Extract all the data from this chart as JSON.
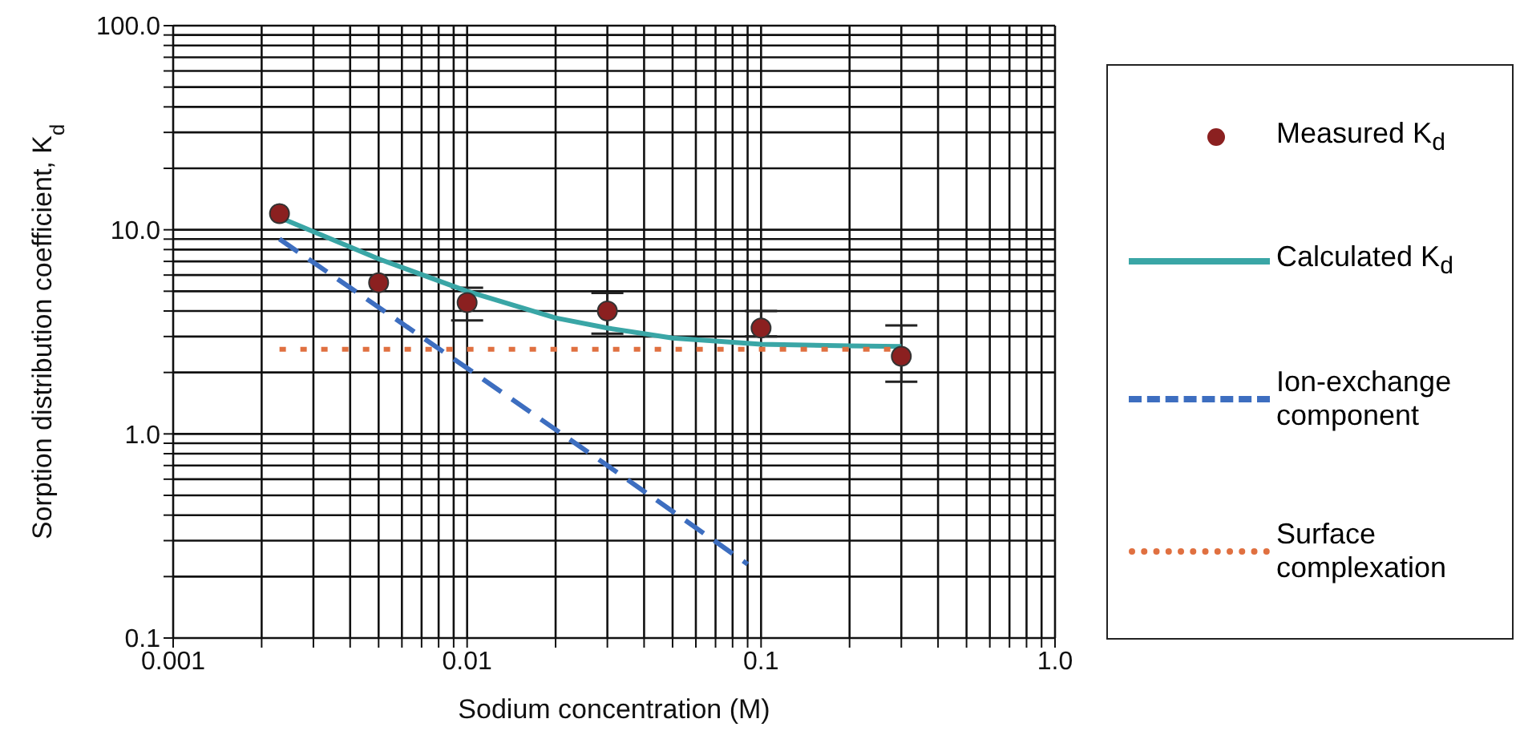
{
  "chart_data": {
    "type": "scatter",
    "xlabel": "Sodium concentration (M)",
    "ylabel": "Sorption distribution coefficient, K$_{d}$",
    "log": "xy",
    "grid": true,
    "legend": "right",
    "xlim": [
      0.001,
      1.0
    ],
    "ylim": [
      0.1,
      100.0
    ],
    "xticks": [
      {
        "value": 0.001,
        "label": "0.001"
      },
      {
        "value": 0.002,
        "label": null
      },
      {
        "value": 0.003,
        "label": null
      },
      {
        "value": 0.004,
        "label": null
      },
      {
        "value": 0.005,
        "label": null
      },
      {
        "value": 0.006,
        "label": null
      },
      {
        "value": 0.007,
        "label": null
      },
      {
        "value": 0.008,
        "label": null
      },
      {
        "value": 0.009,
        "label": null
      },
      {
        "value": 0.01,
        "label": "0.01"
      },
      {
        "value": 0.02,
        "label": null
      },
      {
        "value": 0.03,
        "label": null
      },
      {
        "value": 0.04,
        "label": null
      },
      {
        "value": 0.05,
        "label": null
      },
      {
        "value": 0.06,
        "label": null
      },
      {
        "value": 0.07,
        "label": null
      },
      {
        "value": 0.08,
        "label": null
      },
      {
        "value": 0.09,
        "label": null
      },
      {
        "value": 0.1,
        "label": "0.1"
      },
      {
        "value": 0.2,
        "label": null
      },
      {
        "value": 0.3,
        "label": null
      },
      {
        "value": 0.4,
        "label": null
      },
      {
        "value": 0.5,
        "label": null
      },
      {
        "value": 0.6,
        "label": null
      },
      {
        "value": 0.7,
        "label": null
      },
      {
        "value": 0.8,
        "label": null
      },
      {
        "value": 0.9,
        "label": null
      },
      {
        "value": 1.0,
        "label": "1.0"
      }
    ],
    "yticks": [
      {
        "value": 0.1,
        "label": "0.1"
      },
      {
        "value": 0.2,
        "label": null
      },
      {
        "value": 0.3,
        "label": null
      },
      {
        "value": 0.4,
        "label": null
      },
      {
        "value": 0.5,
        "label": null
      },
      {
        "value": 0.6,
        "label": null
      },
      {
        "value": 0.7,
        "label": null
      },
      {
        "value": 0.8,
        "label": null
      },
      {
        "value": 0.9,
        "label": null
      },
      {
        "value": 1.0,
        "label": "1.0"
      },
      {
        "value": 2,
        "label": null
      },
      {
        "value": 3,
        "label": null
      },
      {
        "value": 4,
        "label": null
      },
      {
        "value": 5,
        "label": null
      },
      {
        "value": 6,
        "label": null
      },
      {
        "value": 7,
        "label": null
      },
      {
        "value": 8,
        "label": null
      },
      {
        "value": 9,
        "label": null
      },
      {
        "value": 10.0,
        "label": "10.0"
      },
      {
        "value": 20,
        "label": null
      },
      {
        "value": 30,
        "label": null
      },
      {
        "value": 40,
        "label": null
      },
      {
        "value": 50,
        "label": null
      },
      {
        "value": 60,
        "label": null
      },
      {
        "value": 70,
        "label": null
      },
      {
        "value": 80,
        "label": null
      },
      {
        "value": 90,
        "label": null
      },
      {
        "value": 100.0,
        "label": "100.0"
      }
    ],
    "series": [
      {
        "name": "Measured K$_{d}$",
        "marker": "circle",
        "color": "#8b2020",
        "x": [
          0.0023,
          0.005,
          0.01,
          0.03,
          0.1,
          0.3
        ],
        "values": [
          12,
          5.5,
          4.4,
          4.0,
          3.3,
          2.4
        ],
        "errors": [
          null,
          null,
          [
            3.6,
            5.2
          ],
          [
            3.1,
            4.9
          ],
          [
            3.0,
            4.0
          ],
          [
            1.8,
            3.4
          ]
        ]
      },
      {
        "name": "Calculated K$_{d}$",
        "type": "line",
        "line_style": "solid",
        "marker": "none",
        "color": "#3aa6a6",
        "x": [
          0.0023,
          0.003,
          0.005,
          0.01,
          0.02,
          0.03,
          0.05,
          0.1,
          0.2,
          0.3
        ],
        "values": [
          11.5,
          9.8,
          7.2,
          5.0,
          3.7,
          3.3,
          2.95,
          2.75,
          2.7,
          2.68
        ]
      },
      {
        "name": "Ion-exchange component",
        "type": "line",
        "line_style": "dashed",
        "marker": "none",
        "color": "#3d6ec0",
        "x": [
          0.0023,
          0.01,
          0.03,
          0.09
        ],
        "values": [
          9,
          2.1,
          0.7,
          0.23
        ]
      },
      {
        "name": "Surface complexation",
        "type": "line",
        "line_style": "dotted",
        "marker": "none",
        "color": "#e07040",
        "x": [
          0.0023,
          0.3
        ],
        "values": [
          2.6,
          2.6
        ]
      }
    ]
  }
}
